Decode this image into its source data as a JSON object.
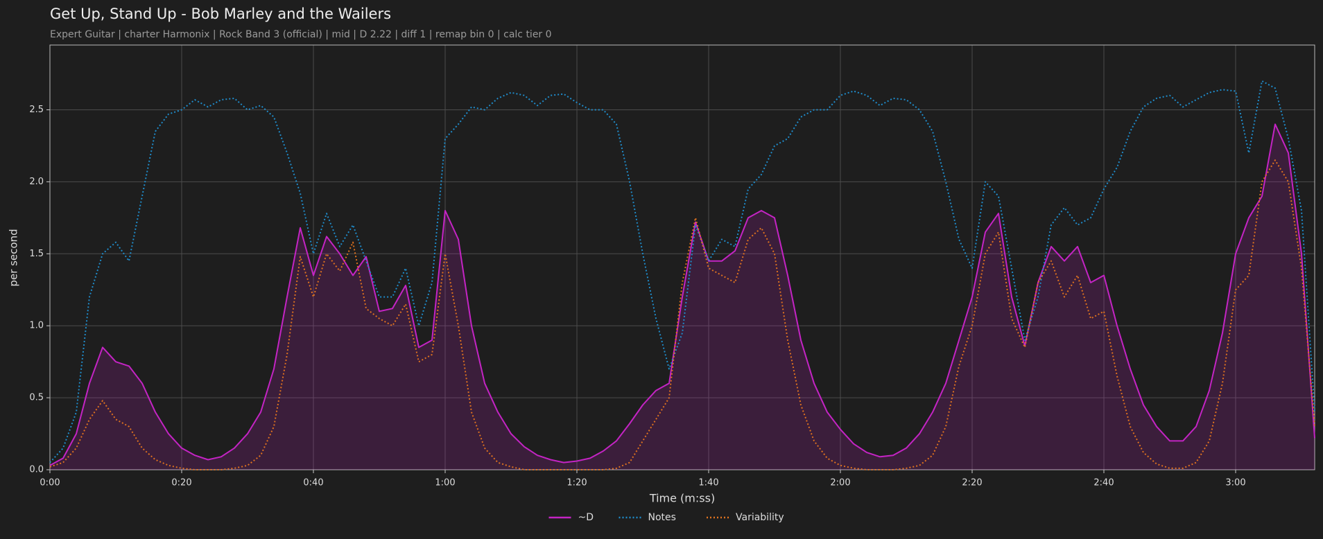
{
  "chart_data": {
    "type": "line",
    "title": "Get Up, Stand Up - Bob Marley and the Wailers",
    "subtitle": "Expert Guitar  |  charter Harmonix  |  Rock Band 3 (official)  |  mid  |  D 2.22  |  diff 1  |  remap bin 0  |  calc tier 0",
    "xlabel": "Time (m:ss)",
    "ylabel": "per second",
    "x": [
      0,
      2,
      4,
      6,
      8,
      10,
      12,
      14,
      16,
      18,
      20,
      22,
      24,
      26,
      28,
      30,
      32,
      34,
      36,
      38,
      40,
      42,
      44,
      46,
      48,
      50,
      52,
      54,
      56,
      58,
      60,
      62,
      64,
      66,
      68,
      70,
      72,
      74,
      76,
      78,
      80,
      82,
      84,
      86,
      88,
      90,
      92,
      94,
      96,
      98,
      100,
      102,
      104,
      106,
      108,
      110,
      112,
      114,
      116,
      118,
      120,
      122,
      124,
      126,
      128,
      130,
      132,
      134,
      136,
      138,
      140,
      142,
      144,
      146,
      148,
      150,
      152,
      154,
      156,
      158,
      160,
      162,
      164,
      166,
      168,
      170,
      172,
      174,
      176,
      178,
      180,
      182,
      184,
      186,
      188,
      190,
      192
    ],
    "series": [
      {
        "name": "~D",
        "color": "#c424c4",
        "style": "solid",
        "area": true,
        "values": [
          0.03,
          0.08,
          0.25,
          0.6,
          0.85,
          0.75,
          0.72,
          0.6,
          0.4,
          0.25,
          0.15,
          0.1,
          0.07,
          0.09,
          0.15,
          0.25,
          0.4,
          0.7,
          1.2,
          1.68,
          1.35,
          1.62,
          1.5,
          1.35,
          1.48,
          1.1,
          1.12,
          1.28,
          0.85,
          0.9,
          1.8,
          1.6,
          1.0,
          0.6,
          0.4,
          0.25,
          0.16,
          0.1,
          0.07,
          0.05,
          0.06,
          0.08,
          0.13,
          0.2,
          0.32,
          0.45,
          0.55,
          0.6,
          1.2,
          1.72,
          1.45,
          1.45,
          1.52,
          1.75,
          1.8,
          1.75,
          1.35,
          0.9,
          0.6,
          0.4,
          0.28,
          0.18,
          0.12,
          0.09,
          0.1,
          0.15,
          0.25,
          0.4,
          0.6,
          0.9,
          1.2,
          1.65,
          1.78,
          1.2,
          0.86,
          1.3,
          1.55,
          1.45,
          1.55,
          1.3,
          1.35,
          1.0,
          0.7,
          0.45,
          0.3,
          0.2,
          0.2,
          0.3,
          0.55,
          0.95,
          1.5,
          1.75,
          1.9,
          2.4,
          2.2,
          1.5,
          0.22
        ]
      },
      {
        "name": "Notes",
        "color": "#1f8dcc",
        "style": "dotted",
        "values": [
          0.05,
          0.15,
          0.4,
          1.2,
          1.5,
          1.58,
          1.45,
          1.9,
          2.35,
          2.47,
          2.5,
          2.57,
          2.52,
          2.57,
          2.58,
          2.5,
          2.53,
          2.45,
          2.2,
          1.92,
          1.5,
          1.78,
          1.55,
          1.7,
          1.45,
          1.2,
          1.2,
          1.4,
          1.0,
          1.3,
          2.3,
          2.4,
          2.52,
          2.5,
          2.58,
          2.62,
          2.6,
          2.53,
          2.6,
          2.61,
          2.55,
          2.5,
          2.5,
          2.4,
          2.0,
          1.5,
          1.05,
          0.7,
          0.95,
          1.7,
          1.45,
          1.6,
          1.55,
          1.95,
          2.05,
          2.25,
          2.3,
          2.45,
          2.5,
          2.5,
          2.6,
          2.63,
          2.6,
          2.53,
          2.58,
          2.57,
          2.5,
          2.35,
          2.0,
          1.6,
          1.4,
          2.0,
          1.9,
          1.4,
          0.9,
          1.2,
          1.7,
          1.82,
          1.7,
          1.75,
          1.95,
          2.1,
          2.35,
          2.52,
          2.58,
          2.6,
          2.52,
          2.57,
          2.62,
          2.64,
          2.63,
          2.2,
          2.7,
          2.65,
          2.3,
          1.8,
          0.4
        ]
      },
      {
        "name": "Variability",
        "color": "#e0731f",
        "style": "dotted",
        "values": [
          0.02,
          0.05,
          0.15,
          0.35,
          0.48,
          0.35,
          0.3,
          0.15,
          0.07,
          0.03,
          0.01,
          0,
          0,
          0,
          0.01,
          0.03,
          0.1,
          0.3,
          0.8,
          1.48,
          1.2,
          1.5,
          1.38,
          1.58,
          1.12,
          1.05,
          1.0,
          1.15,
          0.75,
          0.8,
          1.5,
          1.0,
          0.4,
          0.15,
          0.05,
          0.02,
          0,
          0,
          0,
          0,
          0,
          0,
          0,
          0.01,
          0.05,
          0.2,
          0.35,
          0.5,
          1.3,
          1.75,
          1.4,
          1.35,
          1.3,
          1.6,
          1.68,
          1.5,
          0.9,
          0.45,
          0.2,
          0.08,
          0.03,
          0.01,
          0,
          0,
          0,
          0.01,
          0.03,
          0.1,
          0.3,
          0.72,
          1.0,
          1.5,
          1.65,
          1.05,
          0.85,
          1.3,
          1.45,
          1.2,
          1.35,
          1.05,
          1.1,
          0.65,
          0.3,
          0.12,
          0.04,
          0.01,
          0.01,
          0.05,
          0.2,
          0.6,
          1.25,
          1.35,
          2.0,
          2.15,
          2.0,
          1.4,
          0.3
        ]
      }
    ],
    "xlim": [
      0,
      192
    ],
    "ylim": [
      0,
      2.95
    ],
    "xticks": [
      {
        "value": 0,
        "label": "0:00"
      },
      {
        "value": 20,
        "label": "0:20"
      },
      {
        "value": 40,
        "label": "0:40"
      },
      {
        "value": 60,
        "label": "1:00"
      },
      {
        "value": 80,
        "label": "1:20"
      },
      {
        "value": 100,
        "label": "1:40"
      },
      {
        "value": 120,
        "label": "2:00"
      },
      {
        "value": 140,
        "label": "2:20"
      },
      {
        "value": 160,
        "label": "2:40"
      },
      {
        "value": 180,
        "label": "3:00"
      }
    ],
    "yticks": [
      {
        "value": 0,
        "label": "0.0"
      },
      0.5,
      {
        "value": 1,
        "label": "1.0"
      },
      1.5,
      {
        "value": 2,
        "label": "2.0"
      },
      2.5
    ],
    "grid": true,
    "legend": "bottom"
  }
}
